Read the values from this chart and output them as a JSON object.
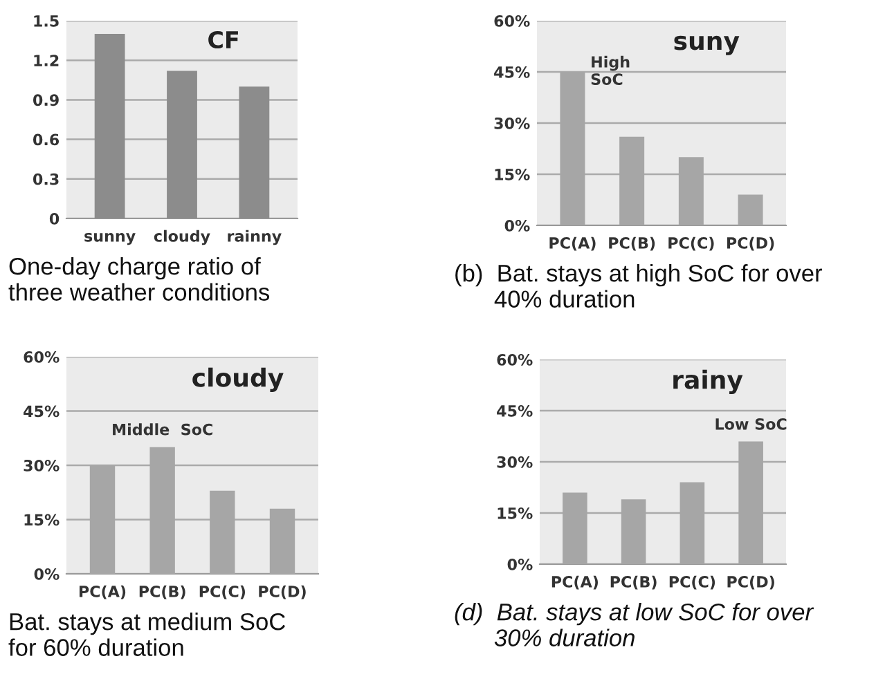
{
  "chart_data": [
    {
      "type": "bar",
      "title": "CF",
      "categories": [
        "sunny",
        "cloudy",
        "rainny"
      ],
      "series": [
        {
          "color": "#8c8c8c",
          "values": [
            1.4,
            1.12,
            1.0
          ]
        }
      ],
      "ylim": [
        0,
        1.5
      ],
      "yticks": [
        0,
        0.3,
        0.6,
        0.9,
        1.2,
        1.5
      ],
      "grid": "y",
      "annotations": [
        "One-day charge ratio of\nthree weather conditions"
      ]
    },
    {
      "type": "bar",
      "title": "suny",
      "categories": [
        "PC(A)",
        "PC(B)",
        "PC(C)",
        "PC(D)"
      ],
      "series": [
        {
          "color": "#a6a6a6",
          "values": [
            45,
            26,
            20,
            9
          ]
        }
      ],
      "ylim": [
        0,
        60
      ],
      "yticks": [
        {
          "value": 0,
          "label": "0%"
        },
        {
          "value": 15,
          "label": "15%"
        },
        {
          "value": 30,
          "label": "30%"
        },
        {
          "value": 45,
          "label": "45%"
        },
        {
          "value": 60,
          "label": "60%"
        }
      ],
      "grid": "y",
      "annotations": [
        {
          "text": "High\nSoC",
          "x": "PC(A)",
          "y": 45
        },
        "(b)  Bat. stays at high SoC for over\n      40% duration"
      ]
    },
    {
      "type": "bar",
      "title": "cloudy",
      "categories": [
        "PC(A)",
        "PC(B)",
        "PC(C)",
        "PC(D)"
      ],
      "series": [
        {
          "color": "#a6a6a6",
          "values": [
            30,
            35,
            23,
            18
          ]
        }
      ],
      "ylim": [
        0,
        60
      ],
      "yticks": [
        {
          "value": 0,
          "label": "0%"
        },
        {
          "value": 15,
          "label": "15%"
        },
        {
          "value": 30,
          "label": "30%"
        },
        {
          "value": 45,
          "label": "45%"
        },
        {
          "value": 60,
          "label": "60%"
        }
      ],
      "grid": "y",
      "annotations": [
        {
          "text": "Middle  SoC",
          "x": "PC(B)",
          "y": 35
        },
        "Bat. stays at medium SoC\nfor 60% duration"
      ]
    },
    {
      "type": "bar",
      "title": "rainy",
      "categories": [
        "PC(A)",
        "PC(B)",
        "PC(C)",
        "PC(D)"
      ],
      "series": [
        {
          "color": "#a6a6a6",
          "values": [
            21,
            19,
            24,
            36
          ]
        }
      ],
      "ylim": [
        0,
        60
      ],
      "yticks": [
        {
          "value": 0,
          "label": "0%"
        },
        {
          "value": 15,
          "label": "15%"
        },
        {
          "value": 30,
          "label": "30%"
        },
        {
          "value": 45,
          "label": "45%"
        },
        {
          "value": 60,
          "label": "60%"
        }
      ],
      "grid": "y",
      "annotations": [
        {
          "text": "Low SoC",
          "x": "PC(D)",
          "y": 36
        },
        "(d)  Bat. stays at low SoC for over\n      30% duration"
      ]
    }
  ]
}
